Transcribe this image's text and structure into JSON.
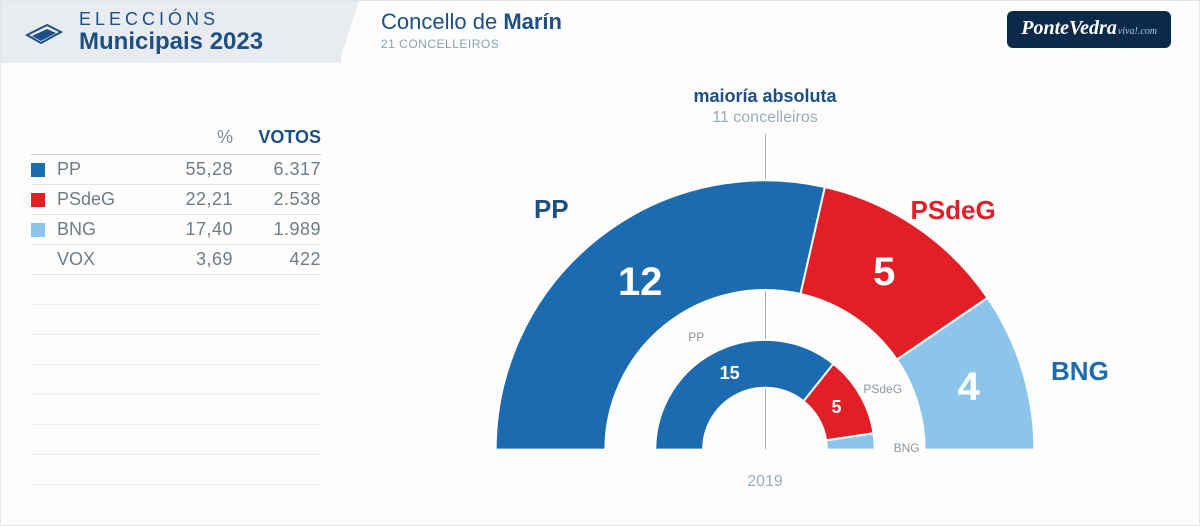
{
  "header": {
    "tab_line1": "ELECCIÓNS",
    "tab_line2": "Municipais 2023",
    "title_prefix": "Concello de ",
    "title_bold": "Marín",
    "subtitle": "21 CONCELLEIROS",
    "logo_a": "Ponte",
    "logo_b": "Vedra",
    "logo_tail": "viva!.com"
  },
  "majority": {
    "label": "maioría absoluta",
    "sub": "11 concelleiros"
  },
  "colors": {
    "brand_text": "#1c4f86",
    "muted": "#8aa0b2",
    "grid": "#e2e6ea",
    "needle": "#a8b4bd"
  },
  "table": {
    "header_pct": "%",
    "header_votes": "VOTOS",
    "rows": [
      {
        "name": "PP",
        "swatch": "#1c6bb0",
        "pct": "55,28",
        "votes": "6.317"
      },
      {
        "name": "PSdeG",
        "swatch": "#e21e26",
        "pct": "22,21",
        "votes": "2.538"
      },
      {
        "name": "BNG",
        "swatch": "#8bc5ea",
        "pct": "17,40",
        "votes": "1.989"
      },
      {
        "name": "VOX",
        "swatch": "",
        "pct": "3,69",
        "votes": "422"
      }
    ],
    "empty_rows": 7
  },
  "chart": {
    "type": "semi-donut",
    "total_seats": 21,
    "outer_radius": 270,
    "inner_radius": 160,
    "prev_outer_radius": 110,
    "prev_inner_radius": 62,
    "background": "#ffffff",
    "segments": [
      {
        "party": "PP",
        "seats": 12,
        "color": "#1c6bb0",
        "label_color": "#1c4f86"
      },
      {
        "party": "PSdeG",
        "seats": 5,
        "color": "#e21e26",
        "label_color": "#e21e26"
      },
      {
        "party": "BNG",
        "seats": 4,
        "color": "#8bc5ea",
        "label_color": "#1c6bb0"
      }
    ],
    "previous": {
      "year": "2019",
      "total_seats": 21,
      "segments": [
        {
          "party": "PP",
          "seats": 15,
          "color": "#1c6bb0"
        },
        {
          "party": "PSdeG",
          "seats": 5,
          "color": "#e21e26"
        },
        {
          "party": "BNG",
          "seats": 1,
          "color": "#8bc5ea"
        }
      ]
    }
  }
}
